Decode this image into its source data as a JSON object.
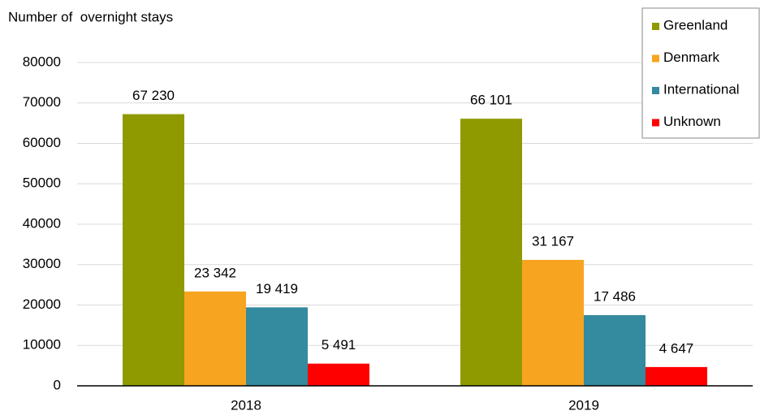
{
  "chart_data": {
    "type": "bar",
    "y_axis_label": "Number of  overnight stays",
    "categories": [
      "2018",
      "2019"
    ],
    "series": [
      {
        "name": "Greenland",
        "color": "#8f9a00",
        "values": [
          67230,
          66101
        ],
        "value_labels": [
          "67 230",
          "66 101"
        ]
      },
      {
        "name": "Denmark",
        "color": "#f7a520",
        "values": [
          23342,
          31167
        ],
        "value_labels": [
          "23 342",
          "31 167"
        ]
      },
      {
        "name": "International",
        "color": "#348a9e",
        "values": [
          19419,
          17486
        ],
        "value_labels": [
          "19 419",
          "17 486"
        ]
      },
      {
        "name": "Unknown",
        "color": "#ff0000",
        "values": [
          5491,
          4647
        ],
        "value_labels": [
          "5 491",
          "4 647"
        ]
      }
    ],
    "ylim": [
      0,
      80000
    ],
    "yticks": [
      0,
      10000,
      20000,
      30000,
      40000,
      50000,
      60000,
      70000,
      80000
    ],
    "grid": true,
    "legend": "top-right"
  }
}
